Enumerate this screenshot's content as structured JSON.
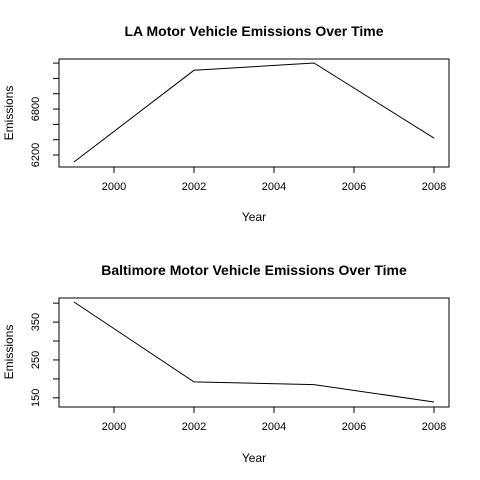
{
  "chart_data": [
    {
      "type": "line",
      "title": "LA Motor Vehicle Emissions Over Time",
      "xlabel": "Year",
      "ylabel": "Emissions",
      "x": [
        1999,
        2002,
        2005,
        2008
      ],
      "y": [
        6109,
        7306,
        7401,
        6421
      ],
      "xlim": [
        1999,
        2008
      ],
      "ylim": [
        6109,
        7401
      ],
      "xticks": [
        2000,
        2002,
        2004,
        2006,
        2008
      ],
      "yticks": [
        6200,
        6400,
        6600,
        6800,
        7000,
        7200,
        7400
      ],
      "ytick_labels": [
        "6200",
        "",
        "",
        "6800",
        "",
        "",
        ""
      ],
      "grid": false,
      "legend": "none"
    },
    {
      "type": "line",
      "title": "Baltimore Motor Vehicle Emissions Over Time",
      "xlabel": "Year",
      "ylabel": "Emissions",
      "x": [
        1999,
        2002,
        2005,
        2008
      ],
      "y": [
        403,
        192,
        185,
        139
      ],
      "xlim": [
        1999,
        2008
      ],
      "ylim": [
        139,
        403
      ],
      "xticks": [
        2000,
        2002,
        2004,
        2006,
        2008
      ],
      "yticks": [
        150,
        200,
        250,
        300,
        350,
        400
      ],
      "ytick_labels": [
        "150",
        "",
        "250",
        "",
        "350",
        ""
      ],
      "grid": false,
      "legend": "none"
    }
  ]
}
